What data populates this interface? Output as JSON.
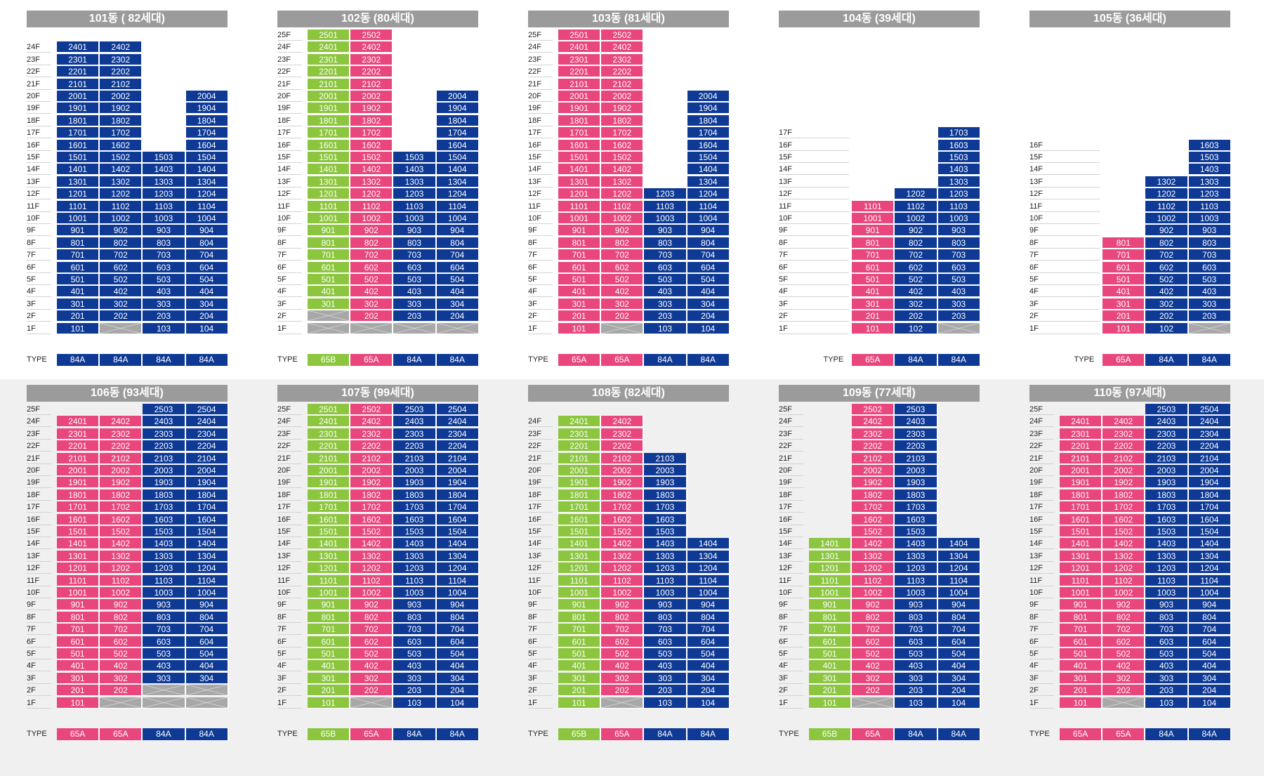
{
  "colors": {
    "65A": "#e8467c",
    "65B": "#8cc63f",
    "84A": "#0e3a96",
    "empty": "#a8a8a8"
  },
  "type_label": "TYPE",
  "buildings": [
    {
      "title": "101동 ( 82세대)",
      "ncols": 4,
      "types": [
        "84A",
        "84A",
        "84A",
        "84A"
      ],
      "top_floor": 24,
      "units": [
        [
          "101",
          "201",
          "301",
          "401",
          "501",
          "601",
          "701",
          "801",
          "901",
          "1001",
          "1101",
          "1201",
          "1301",
          "1401",
          "1501",
          "1601",
          "1701",
          "1801",
          "1901",
          "2001",
          "2101",
          "2201",
          "2301",
          "2401"
        ],
        [
          "",
          "202",
          "302",
          "402",
          "502",
          "602",
          "702",
          "802",
          "902",
          "1002",
          "1102",
          "1202",
          "1302",
          "1402",
          "1502",
          "1602",
          "1702",
          "1802",
          "1902",
          "2002",
          "2102",
          "2202",
          "2302",
          "2402"
        ],
        [
          "103",
          "203",
          "303",
          "403",
          "503",
          "603",
          "703",
          "803",
          "903",
          "1003",
          "1103",
          "1203",
          "1303",
          "1403",
          "1503"
        ],
        [
          "104",
          "204",
          "304",
          "404",
          "504",
          "604",
          "704",
          "804",
          "904",
          "1004",
          "1104",
          "1204",
          "1304",
          "1404",
          "1504",
          "1604",
          "1704",
          "1804",
          "1904",
          "2004"
        ]
      ]
    },
    {
      "title": "102동 (80세대)",
      "ncols": 4,
      "types": [
        "65B",
        "65A",
        "84A",
        "84A"
      ],
      "top_floor": 25,
      "units": [
        [
          "",
          "",
          "301",
          "401",
          "501",
          "601",
          "701",
          "801",
          "901",
          "1001",
          "1101",
          "1201",
          "1301",
          "1401",
          "1501",
          "1601",
          "1701",
          "1801",
          "1901",
          "2001",
          "2101",
          "2201",
          "2301",
          "2401",
          "2501"
        ],
        [
          "",
          "202",
          "302",
          "402",
          "502",
          "602",
          "702",
          "802",
          "902",
          "1002",
          "1102",
          "1202",
          "1302",
          "1402",
          "1502",
          "1602",
          "1702",
          "1802",
          "1902",
          "2002",
          "2102",
          "2202",
          "2302",
          "2402",
          "2502"
        ],
        [
          "",
          "203",
          "303",
          "403",
          "503",
          "603",
          "703",
          "803",
          "903",
          "1003",
          "1103",
          "1203",
          "1303",
          "1403",
          "1503"
        ],
        [
          "",
          "204",
          "304",
          "404",
          "504",
          "604",
          "704",
          "804",
          "904",
          "1004",
          "1104",
          "1204",
          "1304",
          "1404",
          "1504",
          "1604",
          "1704",
          "1804",
          "1904",
          "2004"
        ]
      ]
    },
    {
      "title": "103동 (81세대)",
      "ncols": 4,
      "types": [
        "65A",
        "65A",
        "84A",
        "84A"
      ],
      "top_floor": 25,
      "units": [
        [
          "101",
          "201",
          "301",
          "401",
          "501",
          "601",
          "701",
          "801",
          "901",
          "1001",
          "1101",
          "1201",
          "1301",
          "1401",
          "1501",
          "1601",
          "1701",
          "1801",
          "1901",
          "2001",
          "2101",
          "2201",
          "2301",
          "2401",
          "2501"
        ],
        [
          "",
          "202",
          "302",
          "402",
          "502",
          "602",
          "702",
          "802",
          "902",
          "1002",
          "1102",
          "1202",
          "1302",
          "1402",
          "1502",
          "1602",
          "1702",
          "1802",
          "1902",
          "2002",
          "2102",
          "2202",
          "2302",
          "2402",
          "2502"
        ],
        [
          "103",
          "203",
          "303",
          "403",
          "503",
          "603",
          "703",
          "803",
          "903",
          "1003",
          "1103",
          "1203"
        ],
        [
          "104",
          "204",
          "304",
          "404",
          "504",
          "604",
          "704",
          "804",
          "904",
          "1004",
          "1104",
          "1204",
          "1304",
          "1404",
          "1504",
          "1604",
          "1704",
          "1804",
          "1904",
          "2004"
        ]
      ]
    },
    {
      "title": "104동 (39세대)",
      "ncols": 3,
      "types": [
        "65A",
        "84A",
        "84A"
      ],
      "top_floor": 17,
      "units": [
        [
          "101",
          "201",
          "301",
          "401",
          "501",
          "601",
          "701",
          "801",
          "901",
          "1001",
          "1101"
        ],
        [
          "102",
          "202",
          "302",
          "402",
          "502",
          "602",
          "702",
          "802",
          "902",
          "1002",
          "1102",
          "1202"
        ],
        [
          "",
          "203",
          "303",
          "403",
          "503",
          "603",
          "703",
          "803",
          "903",
          "1003",
          "1103",
          "1203",
          "1303",
          "1403",
          "1503",
          "1603",
          "1703"
        ]
      ]
    },
    {
      "title": "105동 (36세대)",
      "ncols": 3,
      "types": [
        "65A",
        "84A",
        "84A"
      ],
      "top_floor": 16,
      "units": [
        [
          "101",
          "201",
          "301",
          "401",
          "501",
          "601",
          "701",
          "801"
        ],
        [
          "102",
          "202",
          "302",
          "402",
          "502",
          "602",
          "702",
          "802",
          "902",
          "1002",
          "1102",
          "1202",
          "1302"
        ],
        [
          "",
          "203",
          "303",
          "403",
          "503",
          "603",
          "703",
          "803",
          "903",
          "1003",
          "1103",
          "1203",
          "1303",
          "1403",
          "1503",
          "1603"
        ]
      ]
    },
    {
      "title": "106동 (93세대)",
      "ncols": 4,
      "types": [
        "65A",
        "65A",
        "84A",
        "84A"
      ],
      "top_floor": 25,
      "units": [
        [
          "101",
          "201",
          "301",
          "401",
          "501",
          "601",
          "701",
          "801",
          "901",
          "1001",
          "1101",
          "1201",
          "1301",
          "1401",
          "1501",
          "1601",
          "1701",
          "1801",
          "1901",
          "2001",
          "2101",
          "2201",
          "2301",
          "2401"
        ],
        [
          "",
          "202",
          "302",
          "402",
          "502",
          "602",
          "702",
          "802",
          "902",
          "1002",
          "1102",
          "1202",
          "1302",
          "1402",
          "1502",
          "1602",
          "1702",
          "1802",
          "1902",
          "2002",
          "2102",
          "2202",
          "2302",
          "2402"
        ],
        [
          "",
          "",
          "303",
          "403",
          "503",
          "603",
          "703",
          "803",
          "903",
          "1003",
          "1103",
          "1203",
          "1303",
          "1403",
          "1503",
          "1603",
          "1703",
          "1803",
          "1903",
          "2003",
          "2103",
          "2203",
          "2303",
          "2403",
          "2503"
        ],
        [
          "",
          "",
          "304",
          "404",
          "504",
          "604",
          "704",
          "804",
          "904",
          "1004",
          "1104",
          "1204",
          "1304",
          "1404",
          "1504",
          "1604",
          "1704",
          "1804",
          "1904",
          "2004",
          "2104",
          "2204",
          "2304",
          "2404",
          "2504"
        ]
      ]
    },
    {
      "title": "107동 (99세대)",
      "ncols": 4,
      "types": [
        "65B",
        "65A",
        "84A",
        "84A"
      ],
      "top_floor": 25,
      "units": [
        [
          "101",
          "201",
          "301",
          "401",
          "501",
          "601",
          "701",
          "801",
          "901",
          "1001",
          "1101",
          "1201",
          "1301",
          "1401",
          "1501",
          "1601",
          "1701",
          "1801",
          "1901",
          "2001",
          "2101",
          "2201",
          "2301",
          "2401",
          "2501"
        ],
        [
          "",
          "202",
          "302",
          "402",
          "502",
          "602",
          "702",
          "802",
          "902",
          "1002",
          "1102",
          "1202",
          "1302",
          "1402",
          "1502",
          "1602",
          "1702",
          "1802",
          "1902",
          "2002",
          "2102",
          "2202",
          "2302",
          "2402",
          "2502"
        ],
        [
          "103",
          "203",
          "303",
          "403",
          "503",
          "603",
          "703",
          "803",
          "903",
          "1003",
          "1103",
          "1203",
          "1303",
          "1403",
          "1503",
          "1603",
          "1703",
          "1803",
          "1903",
          "2003",
          "2103",
          "2203",
          "2303",
          "2403",
          "2503"
        ],
        [
          "104",
          "204",
          "304",
          "404",
          "504",
          "604",
          "704",
          "804",
          "904",
          "1004",
          "1104",
          "1204",
          "1304",
          "1404",
          "1504",
          "1604",
          "1704",
          "1804",
          "1904",
          "2004",
          "2104",
          "2204",
          "2304",
          "2404",
          "2504"
        ]
      ]
    },
    {
      "title": "108동 (82세대)",
      "ncols": 4,
      "types": [
        "65B",
        "65A",
        "84A",
        "84A"
      ],
      "top_floor": 24,
      "units": [
        [
          "101",
          "201",
          "301",
          "401",
          "501",
          "601",
          "701",
          "801",
          "901",
          "1001",
          "1101",
          "1201",
          "1301",
          "1401",
          "1501",
          "1601",
          "1701",
          "1801",
          "1901",
          "2001",
          "2101",
          "2201",
          "2301",
          "2401"
        ],
        [
          "",
          "202",
          "302",
          "402",
          "502",
          "602",
          "702",
          "802",
          "902",
          "1002",
          "1102",
          "1202",
          "1302",
          "1402",
          "1502",
          "1602",
          "1702",
          "1802",
          "1902",
          "2002",
          "2102",
          "2202",
          "2302",
          "2402"
        ],
        [
          "103",
          "203",
          "303",
          "403",
          "503",
          "603",
          "703",
          "803",
          "903",
          "1003",
          "1103",
          "1203",
          "1303",
          "1403",
          "1503",
          "1603",
          "1703",
          "1803",
          "1903",
          "2003",
          "2103"
        ],
        [
          "104",
          "204",
          "304",
          "404",
          "504",
          "604",
          "704",
          "804",
          "904",
          "1004",
          "1104",
          "1204",
          "1304",
          "1404"
        ]
      ]
    },
    {
      "title": "109동 (77세대)",
      "ncols": 4,
      "types": [
        "65B",
        "65A",
        "84A",
        "84A"
      ],
      "top_floor": 25,
      "units": [
        [
          "101",
          "201",
          "301",
          "401",
          "501",
          "601",
          "701",
          "801",
          "901",
          "1001",
          "1101",
          "1201",
          "1301",
          "1401"
        ],
        [
          "",
          "202",
          "302",
          "402",
          "502",
          "602",
          "702",
          "802",
          "902",
          "1002",
          "1102",
          "1202",
          "1302",
          "1402",
          "1502",
          "1602",
          "1702",
          "1802",
          "1902",
          "2002",
          "2102",
          "2202",
          "2302",
          "2402",
          "2502"
        ],
        [
          "103",
          "203",
          "303",
          "403",
          "503",
          "603",
          "703",
          "803",
          "903",
          "1003",
          "1103",
          "1203",
          "1303",
          "1403",
          "1503",
          "1603",
          "1703",
          "1803",
          "1903",
          "2003",
          "2103",
          "2203",
          "2303",
          "2403",
          "2503"
        ],
        [
          "104",
          "204",
          "304",
          "404",
          "504",
          "604",
          "704",
          "804",
          "904",
          "1004",
          "1104",
          "1204",
          "1304",
          "1404"
        ]
      ]
    },
    {
      "title": "110동 (97세대)",
      "ncols": 4,
      "types": [
        "65A",
        "65A",
        "84A",
        "84A"
      ],
      "top_floor": 25,
      "units": [
        [
          "101",
          "201",
          "301",
          "401",
          "501",
          "601",
          "701",
          "801",
          "901",
          "1001",
          "1101",
          "1201",
          "1301",
          "1401",
          "1501",
          "1601",
          "1701",
          "1801",
          "1901",
          "2001",
          "2101",
          "2201",
          "2301",
          "2401"
        ],
        [
          "",
          "202",
          "302",
          "402",
          "502",
          "602",
          "702",
          "802",
          "902",
          "1002",
          "1102",
          "1202",
          "1302",
          "1402",
          "1502",
          "1602",
          "1702",
          "1802",
          "1902",
          "2002",
          "2102",
          "2202",
          "2302",
          "2402"
        ],
        [
          "103",
          "203",
          "303",
          "403",
          "503",
          "603",
          "703",
          "803",
          "903",
          "1003",
          "1103",
          "1203",
          "1303",
          "1403",
          "1503",
          "1603",
          "1703",
          "1803",
          "1903",
          "2003",
          "2103",
          "2203",
          "2303",
          "2403",
          "2503"
        ],
        [
          "104",
          "204",
          "304",
          "404",
          "504",
          "604",
          "704",
          "804",
          "904",
          "1004",
          "1104",
          "1204",
          "1304",
          "1404",
          "1504",
          "1604",
          "1704",
          "1804",
          "1904",
          "2004",
          "2104",
          "2204",
          "2304",
          "2404",
          "2504"
        ]
      ]
    }
  ]
}
